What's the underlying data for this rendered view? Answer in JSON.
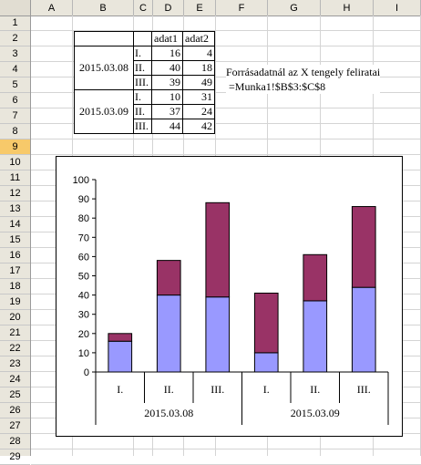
{
  "spreadsheet": {
    "columns": [
      "A",
      "B",
      "C",
      "D",
      "E",
      "F",
      "G",
      "H",
      "I"
    ],
    "rows": [
      "1",
      "2",
      "3",
      "4",
      "5",
      "6",
      "7",
      "8",
      "9",
      "10",
      "11",
      "12",
      "13",
      "14",
      "15",
      "16",
      "17",
      "18",
      "19",
      "20",
      "21",
      "22",
      "23",
      "24",
      "25",
      "26",
      "27",
      "28",
      "29"
    ],
    "selected_row": "9"
  },
  "table": {
    "header": [
      "adat1",
      "adat2"
    ],
    "groups": [
      {
        "date": "2015.03.08",
        "rows": [
          {
            "label": "I.",
            "adat1": "16",
            "adat2": "4"
          },
          {
            "label": "II.",
            "adat1": "40",
            "adat2": "18"
          },
          {
            "label": "III.",
            "adat1": "39",
            "adat2": "49"
          }
        ]
      },
      {
        "date": "2015.03.09",
        "rows": [
          {
            "label": "I.",
            "adat1": "10",
            "adat2": "31"
          },
          {
            "label": "II.",
            "adat1": "37",
            "adat2": "24"
          },
          {
            "label": "III.",
            "adat1": "44",
            "adat2": "42"
          }
        ]
      }
    ]
  },
  "note": {
    "line1": "Forrásadatnál az X tengely feliratai",
    "line2": "=Munka1!$B$3:$C$8"
  },
  "chart_data": {
    "type": "bar",
    "stacked": true,
    "categories": [
      "I.",
      "II.",
      "III.",
      "I.",
      "II.",
      "III."
    ],
    "groups": [
      {
        "label": "2015.03.08",
        "span": 3
      },
      {
        "label": "2015.03.09",
        "span": 3
      }
    ],
    "series": [
      {
        "values": [
          16,
          40,
          39,
          10,
          37,
          44
        ],
        "color": "#9999ff"
      },
      {
        "values": [
          4,
          18,
          49,
          31,
          24,
          42
        ],
        "color": "#993366"
      }
    ],
    "ylim": [
      0,
      100
    ],
    "yticks": [
      "0",
      "10",
      "20",
      "30",
      "40",
      "50",
      "60",
      "70",
      "80",
      "90",
      "100"
    ],
    "grid": false,
    "legend": "none"
  }
}
